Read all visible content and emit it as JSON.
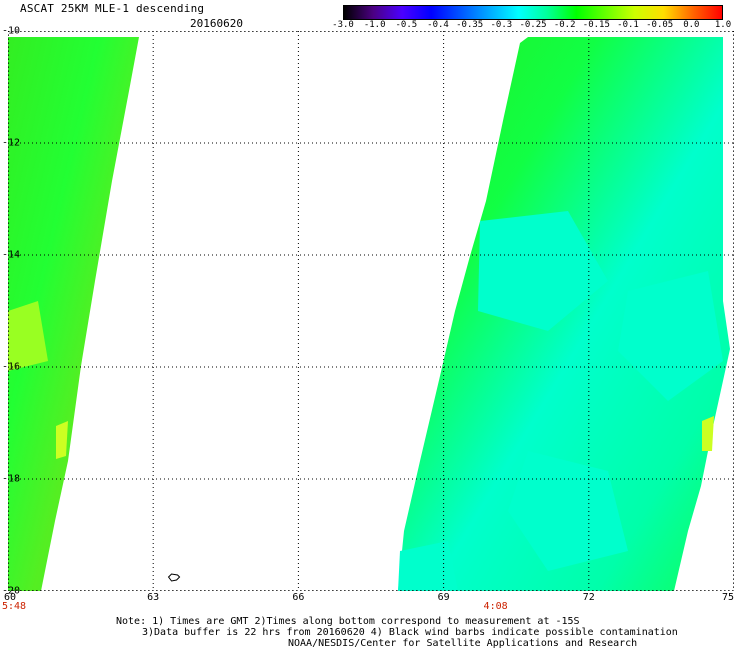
{
  "header": {
    "title": "ASCAT 25KM MLE-1 descending",
    "date": "20160620"
  },
  "colorbar": {
    "labels": [
      "-3.0",
      "-1.0",
      "-0.5",
      "-0.4",
      "-0.35",
      "-0.3",
      "-0.25",
      "-0.2",
      "-0.15",
      "-0.1",
      "-0.05",
      "0.0",
      "1.0"
    ],
    "colors": [
      "#000000",
      "#4b0082",
      "#4b00ff",
      "#0000ff",
      "#0055ff",
      "#00aaff",
      "#00ffff",
      "#00ff99",
      "#00ff00",
      "#66ff00",
      "#ccff00",
      "#ffdd00",
      "#ff6600",
      "#ff0000"
    ]
  },
  "map": {
    "lat_labels": [
      "-10",
      "-12",
      "-14",
      "-16",
      "-18",
      "-20"
    ],
    "lon_labels": [
      "60",
      "63",
      "66",
      "69",
      "72",
      "75"
    ],
    "lat_range": [
      -20,
      -10
    ],
    "lon_range": [
      60,
      75
    ],
    "grid": "dotted",
    "swath_colors": {
      "green": "#22ee22",
      "cyan": "#00ffee",
      "yellow_green": "#aaff22"
    }
  },
  "times": [
    {
      "label": "5:48",
      "lon": 60
    },
    {
      "label": "4:08",
      "lon": 69
    }
  ],
  "notes": {
    "line1": "Note: 1) Times are GMT 2)Times along bottom correspond to measurement at -15S",
    "line2": "3)Data buffer is 22 hrs from 20160620 4) Black wind barbs indicate possible contamination",
    "line3": "NOAA/NESDIS/Center for Satellite Applications and Research"
  }
}
